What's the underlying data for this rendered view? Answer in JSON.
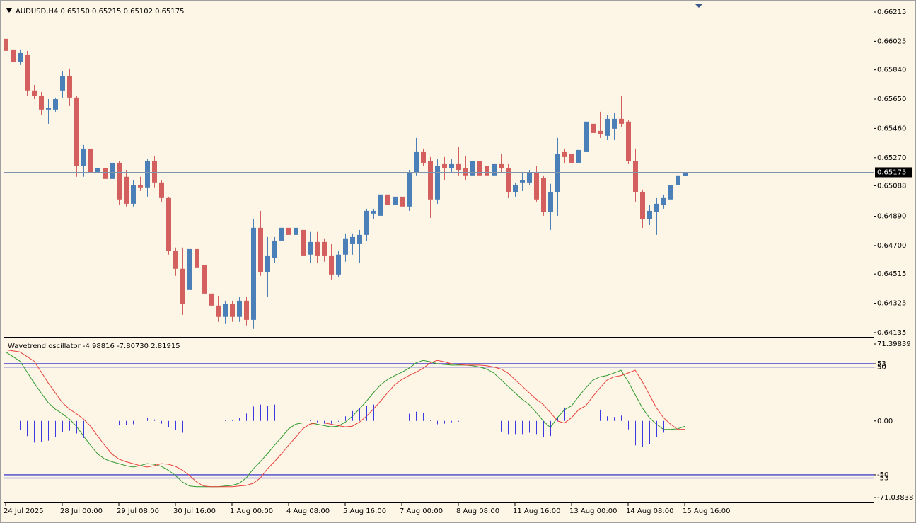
{
  "chart_data": [
    {
      "type": "candlestick",
      "title": "AUDUSD,H4",
      "last_bar_labels": [
        "0.65150",
        "0.65215",
        "0.65102",
        "0.65175"
      ],
      "categories": [
        "24 Jul 2025",
        null,
        null,
        null,
        null,
        null,
        null,
        null,
        "28 Jul 00:00",
        null,
        null,
        null,
        null,
        null,
        null,
        null,
        "29 Jul 08:00",
        null,
        null,
        null,
        null,
        null,
        null,
        null,
        "30 Jul 16:00",
        null,
        null,
        null,
        null,
        null,
        null,
        null,
        "1 Aug 00:00",
        null,
        null,
        null,
        null,
        null,
        null,
        null,
        "4 Aug 08:00",
        null,
        null,
        null,
        null,
        null,
        null,
        null,
        "5 Aug 16:00",
        null,
        null,
        null,
        null,
        null,
        null,
        null,
        "7 Aug 00:00",
        null,
        null,
        null,
        null,
        null,
        null,
        null,
        "8 Aug 08:00",
        null,
        null,
        null,
        null,
        null,
        null,
        null,
        "11 Aug 16:00",
        null,
        null,
        null,
        null,
        null,
        null,
        null,
        "13 Aug 00:00",
        null,
        null,
        null,
        null,
        null,
        null,
        null,
        "14 Aug 08:00",
        null,
        null,
        null,
        null,
        null,
        null,
        null,
        "15 Aug 16:00"
      ],
      "open": [
        0.66041,
        0.65972,
        0.65889,
        0.65935,
        0.65706,
        0.65673,
        0.65582,
        0.65582,
        0.65706,
        0.65797,
        0.6566,
        0.65214,
        0.65329,
        0.65168,
        0.65201,
        0.65132,
        0.65237,
        0.65146,
        0.64971,
        0.6509,
        0.65077,
        0.65247,
        0.65109,
        0.65008,
        0.64664,
        0.64549,
        0.64411,
        0.64677,
        0.64572,
        0.64388,
        0.6431,
        0.64237,
        0.64319,
        0.64237,
        0.64342,
        0.64218,
        0.64815,
        0.64526,
        0.64618,
        0.64732,
        0.64815,
        0.64769,
        0.64801,
        0.64641,
        0.64723,
        0.64723,
        0.64631,
        0.64512,
        0.64641,
        0.64709,
        0.64709,
        0.64769,
        0.64907,
        0.64893,
        0.65031,
        0.64962,
        0.65017,
        0.64953,
        0.65168,
        0.65306,
        0.65247,
        0.64999,
        0.65228,
        0.65201,
        0.65228,
        0.65201,
        0.65155,
        0.65247,
        0.65214,
        0.65155,
        0.65228,
        0.65201,
        0.65045,
        0.65109,
        0.65109,
        0.65168,
        0.65136,
        0.64916,
        0.65045,
        0.65306,
        0.65292,
        0.65237,
        0.65306,
        0.6549,
        0.65444,
        0.65412,
        0.65458,
        0.65522,
        0.65504,
        0.65247,
        0.65045,
        0.6487,
        0.64916,
        0.64962,
        0.64999,
        0.6509,
        0.6515
      ],
      "high": [
        0.66155,
        0.65995,
        0.65972,
        0.65963,
        0.65742,
        0.65696,
        0.6565,
        0.6566,
        0.65834,
        0.65848,
        0.65673,
        0.65352,
        0.65352,
        0.65237,
        0.65237,
        0.65292,
        0.65247,
        0.65191,
        0.65123,
        0.65146,
        0.6526,
        0.65283,
        0.65123,
        0.65017,
        0.64687,
        0.64687,
        0.64709,
        0.64732,
        0.64595,
        0.64411,
        0.64374,
        0.64342,
        0.64342,
        0.64365,
        0.64365,
        0.6487,
        0.64925,
        0.64755,
        0.64755,
        0.64861,
        0.6487,
        0.6487,
        0.6487,
        0.64788,
        0.64788,
        0.64742,
        0.64709,
        0.64664,
        0.64778,
        0.64778,
        0.64801,
        0.64939,
        0.64939,
        0.65063,
        0.65077,
        0.65054,
        0.65054,
        0.65191,
        0.65398,
        0.65329,
        0.65274,
        0.6526,
        0.65274,
        0.6526,
        0.65338,
        0.65283,
        0.65306,
        0.65306,
        0.65247,
        0.65283,
        0.65292,
        0.65228,
        0.65109,
        0.65168,
        0.65191,
        0.65214,
        0.65155,
        0.651,
        0.65398,
        0.65329,
        0.65352,
        0.65352,
        0.65627,
        0.65614,
        0.65568,
        0.65549,
        0.65559,
        0.65673,
        0.65513,
        0.65329,
        0.65063,
        0.64962,
        0.65008,
        0.65031,
        0.65109,
        0.65191,
        0.65215
      ],
      "low": [
        0.65949,
        0.65857,
        0.65871,
        0.65673,
        0.6565,
        0.65549,
        0.6549,
        0.65568,
        0.6566,
        0.65605,
        0.65146,
        0.65146,
        0.65123,
        0.65123,
        0.65109,
        0.65109,
        0.64962,
        0.64953,
        0.64953,
        0.65054,
        0.65017,
        0.65077,
        0.64985,
        0.64641,
        0.64503,
        0.6425,
        0.64296,
        0.64526,
        0.64374,
        0.64273,
        0.64205,
        0.64191,
        0.64205,
        0.64205,
        0.64182,
        0.64159,
        0.64503,
        0.64365,
        0.64586,
        0.64677,
        0.64755,
        0.64732,
        0.64618,
        0.64586,
        0.64586,
        0.64595,
        0.6448,
        0.64494,
        0.64595,
        0.64641,
        0.64586,
        0.64732,
        0.6487,
        0.64879,
        0.64939,
        0.64939,
        0.64925,
        0.64925,
        0.65155,
        0.65214,
        0.64879,
        0.64971,
        0.65123,
        0.65168,
        0.65155,
        0.65123,
        0.65146,
        0.65123,
        0.65123,
        0.65123,
        0.65168,
        0.65008,
        0.65017,
        0.65054,
        0.6509,
        0.64985,
        0.64893,
        0.64801,
        0.64893,
        0.65237,
        0.65214,
        0.65146,
        0.65292,
        0.65398,
        0.65398,
        0.65384,
        0.65384,
        0.65467,
        0.65228,
        0.64985,
        0.64815,
        0.64833,
        0.64769,
        0.64939,
        0.64985,
        0.65077,
        0.65102
      ],
      "close": [
        0.65963,
        0.65889,
        0.65949,
        0.65706,
        0.65673,
        0.65582,
        0.65595,
        0.6565,
        0.65797,
        0.6566,
        0.65214,
        0.65329,
        0.65168,
        0.65201,
        0.65132,
        0.65237,
        0.64999,
        0.64971,
        0.6509,
        0.65077,
        0.65247,
        0.65109,
        0.65008,
        0.64664,
        0.64549,
        0.64319,
        0.64677,
        0.64558,
        0.64388,
        0.6431,
        0.64237,
        0.64319,
        0.64237,
        0.64342,
        0.64218,
        0.64815,
        0.64526,
        0.64631,
        0.64732,
        0.64815,
        0.64769,
        0.64815,
        0.64631,
        0.64723,
        0.64631,
        0.64631,
        0.64512,
        0.64641,
        0.64742,
        0.64755,
        0.64769,
        0.64925,
        0.64925,
        0.65031,
        0.64962,
        0.65017,
        0.64953,
        0.65168,
        0.65306,
        0.65237,
        0.64999,
        0.65214,
        0.65201,
        0.65228,
        0.65191,
        0.65155,
        0.65247,
        0.65155,
        0.65155,
        0.65228,
        0.65201,
        0.65045,
        0.6509,
        0.65123,
        0.65168,
        0.64999,
        0.64916,
        0.65045,
        0.65292,
        0.65274,
        0.65237,
        0.6532,
        0.65504,
        0.6543,
        0.65421,
        0.65522,
        0.65522,
        0.6549,
        0.65247,
        0.65045,
        0.6487,
        0.64925,
        0.64971,
        0.65008,
        0.6509,
        0.65155,
        0.65175
      ],
      "up_color": "#4a7fb8",
      "down_color": "#d45f5f",
      "price_line": 0.65175,
      "price_line_label": "0.65175",
      "price_line_color": "#7f93ad",
      "ylim": [
        0.64121,
        0.6627
      ],
      "yticks": [
        0.66215,
        0.66025,
        {
          "value": 0.6584,
          "label": "0.65840"
        },
        {
          "value": 0.6565,
          "label": "0.65650"
        },
        {
          "value": 0.6546,
          "label": "0.65460"
        },
        {
          "value": 0.6527,
          "label": "0.65270"
        },
        0.65088,
        {
          "value": 0.6489,
          "label": "0.64890"
        },
        {
          "value": 0.647,
          "label": "0.64700"
        },
        0.64515,
        0.64325,
        0.64135
      ],
      "grid": false
    },
    {
      "type": "line",
      "title": "Wavetrend oscillator",
      "header_labels": [
        "-4.98816",
        "-7.80730",
        "2.81915"
      ],
      "series": [
        {
          "color": "#2e9a2e",
          "values": [
            64.0,
            59.8,
            55.5,
            45.7,
            35.4,
            26.2,
            17.1,
            11.0,
            6.7,
            1.8,
            -4.9,
            -14.0,
            -22.6,
            -30.5,
            -35.4,
            -37.8,
            -39.6,
            -41.5,
            -42.7,
            -41.5,
            -39.6,
            -40.2,
            -42.1,
            -45.7,
            -50.6,
            -56.7,
            -60.4,
            -61.0,
            -61.0,
            -61.0,
            -61.0,
            -60.4,
            -59.8,
            -57.9,
            -53.0,
            -44.5,
            -37.8,
            -30.5,
            -22.6,
            -15.2,
            -7.3,
            -3.0,
            -1.8,
            -1.8,
            -3.0,
            -4.3,
            -5.5,
            -4.9,
            -1.2,
            4.3,
            11.0,
            18.3,
            26.2,
            33.5,
            38.4,
            42.1,
            45.1,
            48.8,
            53.7,
            56.1,
            54.9,
            53.0,
            52.4,
            51.8,
            51.8,
            51.8,
            51.2,
            50.0,
            48.2,
            44.5,
            38.4,
            32.3,
            26.2,
            20.1,
            15.2,
            7.9,
            0.0,
            -6.1,
            3.0,
            10.4,
            14.0,
            22.6,
            30.5,
            37.8,
            40.9,
            42.1,
            44.5,
            47.0,
            36.6,
            24.4,
            12.2,
            3.0,
            -3.0,
            -7.9,
            -7.9,
            -7.3,
            -4.98816
          ]
        },
        {
          "color": "#e8403a",
          "values": [
            66.0,
            65.0,
            64.0,
            59.8,
            55.5,
            45.7,
            35.4,
            26.2,
            17.1,
            11.0,
            6.7,
            1.8,
            -4.9,
            -14.0,
            -22.6,
            -30.5,
            -35.4,
            -37.8,
            -39.6,
            -41.5,
            -42.7,
            -41.5,
            -39.6,
            -40.2,
            -42.1,
            -45.7,
            -50.6,
            -56.7,
            -60.4,
            -61.0,
            -61.0,
            -61.0,
            -61.0,
            -60.4,
            -59.8,
            -57.9,
            -53.0,
            -44.5,
            -37.8,
            -30.5,
            -22.6,
            -15.2,
            -7.3,
            -3.0,
            -1.8,
            -1.8,
            -3.0,
            -4.3,
            -5.5,
            -4.9,
            -1.2,
            4.3,
            11.0,
            18.3,
            26.2,
            33.5,
            38.4,
            42.1,
            45.1,
            48.8,
            53.7,
            56.1,
            54.9,
            53.0,
            52.4,
            51.8,
            51.8,
            51.8,
            51.2,
            50.0,
            48.2,
            44.5,
            38.4,
            32.3,
            26.2,
            20.1,
            15.2,
            7.9,
            0.0,
            -2.0,
            3.0,
            10.4,
            14.0,
            22.6,
            30.5,
            37.8,
            40.9,
            42.1,
            44.5,
            47.0,
            36.6,
            24.4,
            12.2,
            3.0,
            -3.0,
            -7.9,
            -7.8073
          ]
        },
        {
          "color": "#3a3ae0",
          "style": "histogram",
          "values": [
            -2.0,
            -5.2,
            -8.5,
            -14.1,
            -20.1,
            -19.5,
            -18.3,
            -15.2,
            -10.4,
            -9.2,
            -11.6,
            -15.8,
            -17.7,
            -16.5,
            -12.8,
            -7.3,
            -4.2,
            -3.7,
            -3.1,
            0.0,
            3.1,
            1.3,
            -2.5,
            -5.5,
            -8.5,
            -11.0,
            -9.8,
            -4.3,
            -0.6,
            0.0,
            0.0,
            0.6,
            1.2,
            2.5,
            6.8,
            13.4,
            15.2,
            14.0,
            15.2,
            15.3,
            15.3,
            12.2,
            5.5,
            1.2,
            -1.2,
            -2.5,
            -2.5,
            -0.6,
            4.3,
            9.2,
            12.2,
            14.0,
            15.2,
            15.2,
            12.2,
            8.6,
            6.7,
            6.7,
            8.6,
            7.3,
            1.2,
            -3.1,
            -2.5,
            -1.2,
            -0.6,
            0.0,
            -0.6,
            -1.8,
            -3.0,
            -5.5,
            -9.8,
            -12.2,
            -12.2,
            -12.2,
            -11.0,
            -12.2,
            -15.2,
            -14.0,
            3.0,
            12.4,
            11.0,
            12.2,
            16.5,
            15.2,
            10.4,
            4.3,
            3.6,
            4.9,
            -7.9,
            -22.6,
            -24.4,
            -21.4,
            -15.2,
            -10.9,
            -4.9,
            0.6,
            2.81915
          ]
        }
      ],
      "levels": [
        53,
        50,
        -50,
        -53
      ],
      "level_color": "#1c1cc8",
      "ylim": [
        -71.03838,
        71.39839
      ],
      "yticks": [
        71.39839,
        53,
        50,
        {
          "value": 0,
          "label": "0.00"
        },
        -50,
        -53,
        -71.03838
      ]
    }
  ]
}
